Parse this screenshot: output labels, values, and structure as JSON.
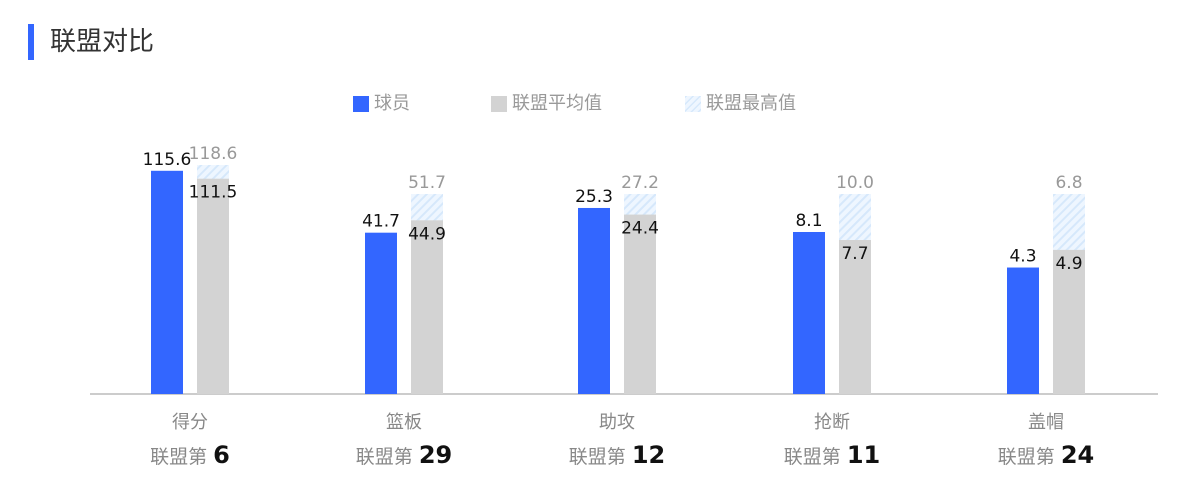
{
  "section": {
    "title": "联盟对比"
  },
  "legend": {
    "player": "球员",
    "avg": "联盟平均值",
    "max": "联盟最高值"
  },
  "colors": {
    "player": "#3366ff",
    "avg": "#d3d3d3",
    "max_fill": "#eef6ff",
    "max_stripe": "#d6e8fb",
    "axis": "#cccccc"
  },
  "rank_prefix": "联盟第",
  "chart_data": {
    "type": "bar",
    "categories": [
      "得分",
      "篮板",
      "助攻",
      "抢断",
      "盖帽"
    ],
    "series": [
      {
        "name": "球员",
        "values": [
          "115.6",
          "41.7",
          "25.3",
          "8.1",
          "4.3"
        ]
      },
      {
        "name": "联盟平均值",
        "values": [
          "111.5",
          "44.9",
          "24.4",
          "7.7",
          "4.9"
        ]
      },
      {
        "name": "联盟最高值",
        "values": [
          "118.6",
          "51.7",
          "27.2",
          "10.0",
          "6.8"
        ]
      }
    ],
    "ranks": [
      "6",
      "29",
      "12",
      "11",
      "24"
    ],
    "note_scale": "each category scaled relative to its own league max",
    "grid": false,
    "legend_position": "top-center"
  }
}
